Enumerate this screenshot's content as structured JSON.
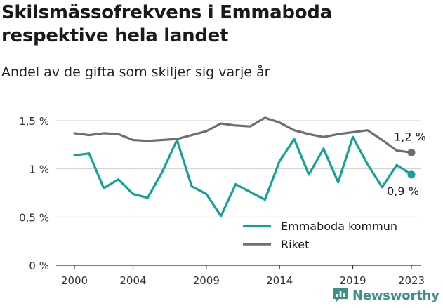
{
  "header": {
    "title": "Skilsmässofrekvens i Emmaboda respektive hela landet",
    "subtitle": "Andel av de gifta som skiljer sig varje år"
  },
  "brand": {
    "name": "Newsworthy"
  },
  "colors": {
    "emmaboda": "#16a196",
    "riket": "#6f6f73",
    "grid": "#cfcfcf",
    "axis": "#333333"
  },
  "chart_data": {
    "type": "line",
    "x": [
      2000,
      2001,
      2002,
      2003,
      2004,
      2005,
      2006,
      2007,
      2008,
      2009,
      2010,
      2011,
      2012,
      2013,
      2014,
      2015,
      2016,
      2017,
      2018,
      2019,
      2020,
      2021,
      2022,
      2023
    ],
    "series": [
      {
        "name": "Emmaboda kommun",
        "color": "#16a196",
        "values": [
          1.14,
          1.16,
          0.8,
          0.89,
          0.74,
          0.7,
          0.97,
          1.3,
          0.82,
          0.74,
          0.51,
          0.84,
          0.76,
          0.68,
          1.08,
          1.31,
          0.94,
          1.21,
          0.86,
          1.33,
          1.05,
          0.81,
          1.04,
          0.94
        ],
        "end_label": "0,9 %"
      },
      {
        "name": "Riket",
        "color": "#6f6f73",
        "values": [
          1.37,
          1.35,
          1.37,
          1.36,
          1.3,
          1.29,
          1.3,
          1.31,
          1.35,
          1.39,
          1.47,
          1.45,
          1.44,
          1.53,
          1.48,
          1.4,
          1.36,
          1.33,
          1.36,
          1.38,
          1.4,
          1.3,
          1.19,
          1.17
        ],
        "end_label": "1,2 %"
      }
    ],
    "y_ticks": [
      {
        "value": 0,
        "label": "0 %"
      },
      {
        "value": 0.5,
        "label": "0,5 %"
      },
      {
        "value": 1,
        "label": "1 %"
      },
      {
        "value": 1.5,
        "label": "1,5 %"
      }
    ],
    "x_ticks": [
      {
        "value": 2000,
        "label": "2000"
      },
      {
        "value": 2004,
        "label": "2004"
      },
      {
        "value": 2009,
        "label": "2009"
      },
      {
        "value": 2014,
        "label": "2014"
      },
      {
        "value": 2019,
        "label": "2019"
      },
      {
        "value": 2023,
        "label": "2023"
      }
    ],
    "xlim": [
      2000,
      2023
    ],
    "ylim": [
      0,
      1.5
    ],
    "grid": "horizontal",
    "legend_position": "bottom-right"
  }
}
